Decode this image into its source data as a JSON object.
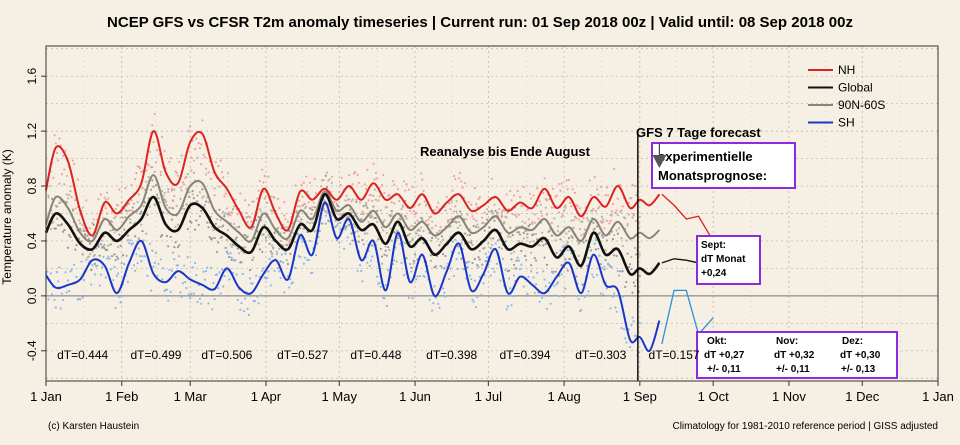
{
  "chart_data": {
    "type": "line",
    "title": "NCEP GFS vs CFSR T2m anomaly timeseries | Current run: 01 Sep 2018 00z | Valid until: 08 Sep 2018 00z",
    "ylabel": "Temperature anomaly (K)",
    "xlabel": "",
    "x_axis": "day of year 2018",
    "xlim": [
      1,
      366
    ],
    "ylim": [
      -0.62,
      1.82
    ],
    "yticks": [
      -0.4,
      0.0,
      0.4,
      0.8,
      1.2,
      1.6
    ],
    "ytick_labels": [
      "-0.4",
      "0.0",
      "0.4",
      "0.8",
      "1.2",
      "1.6"
    ],
    "xticks": [
      1,
      32,
      60,
      91,
      121,
      152,
      182,
      213,
      244,
      274,
      305,
      335,
      366
    ],
    "xtick_labels": [
      "1 Jan",
      "1 Feb",
      "1 Mar",
      "1 Apr",
      "1 May",
      "1 Jun",
      "1 Jul",
      "1 Aug",
      "1 Sep",
      "1 Oct",
      "1 Nov",
      "1 Dec",
      "1 Jan"
    ],
    "grid": true,
    "legend_position": "top-right",
    "series": [
      {
        "name": "NH",
        "color": "#dd2222",
        "scatter_color": "#f0a0a8",
        "x": [
          1,
          5,
          10,
          15,
          20,
          25,
          30,
          35,
          40,
          45,
          50,
          55,
          60,
          65,
          70,
          75,
          80,
          85,
          90,
          95,
          100,
          105,
          110,
          115,
          120,
          125,
          130,
          135,
          140,
          145,
          150,
          155,
          160,
          165,
          170,
          175,
          180,
          185,
          190,
          195,
          200,
          205,
          210,
          215,
          220,
          225,
          230,
          235,
          240,
          244
        ],
        "y": [
          0.77,
          1.08,
          0.98,
          0.62,
          0.44,
          0.68,
          0.6,
          0.7,
          0.82,
          1.2,
          0.9,
          0.82,
          1.12,
          1.18,
          0.9,
          0.78,
          0.62,
          0.5,
          0.78,
          0.6,
          0.48,
          0.76,
          0.7,
          0.78,
          0.7,
          0.8,
          0.7,
          0.82,
          0.7,
          0.74,
          0.64,
          0.74,
          0.6,
          0.68,
          0.74,
          0.62,
          0.66,
          0.72,
          0.62,
          0.68,
          0.64,
          0.78,
          0.64,
          0.72,
          0.58,
          0.72,
          0.65,
          0.8,
          0.64,
          0.7
        ]
      },
      {
        "name": "Global",
        "color": "#111111",
        "scatter_color": "#999999",
        "x": [
          1,
          5,
          10,
          15,
          20,
          25,
          30,
          35,
          40,
          45,
          50,
          55,
          60,
          65,
          70,
          75,
          80,
          85,
          90,
          95,
          100,
          105,
          110,
          115,
          120,
          125,
          130,
          135,
          140,
          145,
          150,
          155,
          160,
          165,
          170,
          175,
          180,
          185,
          190,
          195,
          200,
          205,
          210,
          215,
          220,
          225,
          230,
          235,
          240,
          244
        ],
        "y": [
          0.46,
          0.6,
          0.52,
          0.38,
          0.34,
          0.46,
          0.4,
          0.48,
          0.56,
          0.72,
          0.52,
          0.48,
          0.66,
          0.64,
          0.5,
          0.44,
          0.36,
          0.32,
          0.5,
          0.4,
          0.34,
          0.52,
          0.48,
          0.74,
          0.56,
          0.6,
          0.48,
          0.52,
          0.38,
          0.54,
          0.36,
          0.42,
          0.3,
          0.38,
          0.46,
          0.34,
          0.4,
          0.48,
          0.34,
          0.38,
          0.36,
          0.42,
          0.28,
          0.36,
          0.22,
          0.46,
          0.3,
          0.34,
          0.16,
          0.2
        ]
      },
      {
        "name": "90N-60S",
        "color": "#8a8478",
        "scatter_color": "#bdb4a4",
        "x": [
          1,
          5,
          10,
          15,
          20,
          25,
          30,
          35,
          40,
          45,
          50,
          55,
          60,
          65,
          70,
          75,
          80,
          85,
          90,
          95,
          100,
          105,
          110,
          115,
          120,
          125,
          130,
          135,
          140,
          145,
          150,
          155,
          160,
          165,
          170,
          175,
          180,
          185,
          190,
          195,
          200,
          205,
          210,
          215,
          220,
          225,
          230,
          235,
          240,
          244
        ],
        "y": [
          0.52,
          0.72,
          0.64,
          0.46,
          0.4,
          0.56,
          0.48,
          0.58,
          0.66,
          0.88,
          0.64,
          0.6,
          0.8,
          0.82,
          0.62,
          0.54,
          0.46,
          0.4,
          0.6,
          0.48,
          0.42,
          0.62,
          0.56,
          0.76,
          0.62,
          0.66,
          0.54,
          0.62,
          0.5,
          0.6,
          0.48,
          0.54,
          0.44,
          0.5,
          0.58,
          0.46,
          0.5,
          0.58,
          0.46,
          0.5,
          0.48,
          0.56,
          0.44,
          0.5,
          0.4,
          0.56,
          0.44,
          0.54,
          0.42,
          0.46
        ]
      },
      {
        "name": "SH",
        "color": "#1a36c8",
        "scatter_color": "#8fb8e8",
        "x": [
          1,
          5,
          10,
          15,
          20,
          25,
          30,
          35,
          40,
          45,
          50,
          55,
          60,
          65,
          70,
          75,
          80,
          85,
          90,
          95,
          100,
          105,
          110,
          115,
          120,
          125,
          130,
          135,
          140,
          145,
          150,
          155,
          160,
          165,
          170,
          175,
          180,
          185,
          190,
          195,
          200,
          205,
          210,
          215,
          220,
          225,
          230,
          235,
          240,
          244
        ],
        "y": [
          0.15,
          0.06,
          0.08,
          0.12,
          0.26,
          0.22,
          0.02,
          0.24,
          0.4,
          0.16,
          0.1,
          0.18,
          0.12,
          0.08,
          0.05,
          0.2,
          0.06,
          0.02,
          0.16,
          0.26,
          0.12,
          0.44,
          0.3,
          0.68,
          0.42,
          0.56,
          0.26,
          0.4,
          0.04,
          0.46,
          0.1,
          0.3,
          0.0,
          0.18,
          0.38,
          0.04,
          0.16,
          0.34,
          0.02,
          0.14,
          0.08,
          0.02,
          0.14,
          0.24,
          0.02,
          0.3,
          0.08,
          0.04,
          -0.32,
          -0.3
        ]
      }
    ],
    "forecast": {
      "label": "GFS 7 Tage forecast",
      "NH": {
        "x": [
          244,
          248,
          252
        ],
        "y": [
          0.7,
          0.66,
          0.74
        ]
      },
      "Global": {
        "x": [
          244,
          248,
          252
        ],
        "y": [
          0.2,
          0.16,
          0.24
        ]
      },
      "90N-60S": {
        "x": [
          244,
          248,
          252
        ],
        "y": [
          0.46,
          0.42,
          0.48
        ]
      },
      "SH": {
        "x": [
          244,
          248,
          252
        ],
        "y": [
          -0.3,
          -0.4,
          -0.18
        ]
      }
    },
    "monthly_forecast": {
      "NH": {
        "x": [
          253,
          258,
          263,
          268,
          274
        ],
        "y": [
          0.74,
          0.66,
          0.56,
          0.58,
          0.4
        ]
      },
      "Global": {
        "x": [
          253,
          258,
          263,
          268,
          274
        ],
        "y": [
          0.24,
          0.27,
          0.26,
          0.24,
          0.22
        ]
      },
      "SH": {
        "x": [
          253,
          258,
          263,
          268,
          274
        ],
        "y": [
          -0.35,
          0.04,
          0.04,
          -0.28,
          -0.16
        ]
      }
    },
    "dT_labels": [
      {
        "x": 16,
        "text": "dT=0.444"
      },
      {
        "x": 46,
        "text": "dT=0.499"
      },
      {
        "x": 75,
        "text": "dT=0.506"
      },
      {
        "x": 106,
        "text": "dT=0.527"
      },
      {
        "x": 136,
        "text": "dT=0.448"
      },
      {
        "x": 167,
        "text": "dT=0.398"
      },
      {
        "x": 197,
        "text": "dT=0.394"
      },
      {
        "x": 228,
        "text": "dT=0.303"
      },
      {
        "x": 258,
        "text": "dT=0.157"
      }
    ],
    "annotations": {
      "reanalysis": "Reanalyse bis Ende August",
      "forecast_box_line1": "experimentielle",
      "forecast_box_line2": "Monatsprognose:",
      "sept_line1": "Sept:",
      "sept_line2": "dT Monat",
      "sept_line3": "+0,24",
      "okt_title": "Okt:",
      "okt_dt": "dT +0,27",
      "okt_err": "+/- 0,11",
      "nov_title": "Nov:",
      "nov_dt": "dT +0,32",
      "nov_err": "+/- 0,11",
      "dez_title": "Dez:",
      "dez_dt": "dT +0,30",
      "dez_err": "+/- 0,13"
    },
    "footer_left": "(c) Karsten Haustein",
    "footer_right": "Climatology for 1981-2010 reference period | GISS adjusted"
  }
}
